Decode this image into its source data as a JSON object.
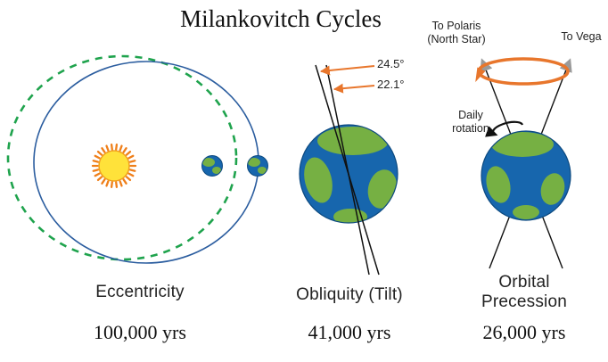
{
  "title": "Milankovitch Cycles",
  "panels": {
    "eccentricity": {
      "label": "Eccentricity",
      "period": "100,000 yrs"
    },
    "obliquity": {
      "label": "Obliquity (Tilt)",
      "period": "41,000 yrs",
      "angle_max": "24.5°",
      "angle_min": "22.1°"
    },
    "precession": {
      "label": "Orbital\nPrecession",
      "period": "26,000 yrs",
      "polaris": "To Polaris\n(North Star)",
      "vega": "To Vega",
      "daily_rotation": "Daily\nrotation"
    }
  },
  "colors": {
    "orbit_eccentric": "#1fa34d",
    "orbit_circular": "#2b5d9f",
    "sun_fill": "#ffe23a",
    "sun_edge": "#f2a01f",
    "sun_rays": "#ef7f1a",
    "ocean": "#1766ad",
    "ocean_edge": "#0d4a80",
    "land": "#76b043",
    "accent_orange": "#e8762c",
    "arrow_gray": "#9a9a9a",
    "axis_black": "#111111"
  }
}
